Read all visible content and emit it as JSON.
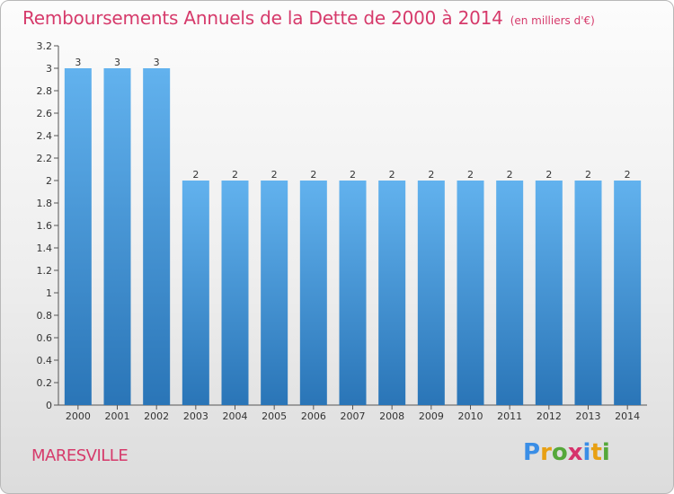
{
  "title": "Remboursements Annuels de la Dette de 2000 à 2014",
  "unit_label": "(en milliers d'€)",
  "commune": "MARESVILLE",
  "logo": {
    "letters": [
      "P",
      "r",
      "o",
      "x",
      "i",
      "t",
      "i"
    ],
    "colors": [
      "#3a8ee6",
      "#e8a013",
      "#55a83a",
      "#d6336c",
      "#3a8ee6",
      "#e8a013",
      "#55a83a"
    ]
  },
  "colors": {
    "bar_top": "#62b2ee",
    "bar_bottom": "#2a75b7",
    "title": "#d63a6b"
  },
  "chart_data": {
    "type": "bar",
    "categories": [
      "2000",
      "2001",
      "2002",
      "2003",
      "2004",
      "2005",
      "2006",
      "2007",
      "2008",
      "2009",
      "2010",
      "2011",
      "2012",
      "2013",
      "2014"
    ],
    "values": [
      3,
      3,
      3,
      2,
      2,
      2,
      2,
      2,
      2,
      2,
      2,
      2,
      2,
      2,
      2
    ],
    "data_labels": [
      "3",
      "3",
      "3",
      "2",
      "2",
      "2",
      "2",
      "2",
      "2",
      "2",
      "2",
      "2",
      "2",
      "2",
      "2"
    ],
    "yticks": [
      0,
      0.2,
      0.4,
      0.6,
      0.8,
      1,
      1.2,
      1.4,
      1.6,
      1.8,
      2,
      2.2,
      2.4,
      2.6,
      2.8,
      3,
      3.2
    ],
    "ytick_labels": [
      "0",
      "0.2",
      "0.4",
      "0.6",
      "0.8",
      "1",
      "1.2",
      "1.4",
      "1.6",
      "1.8",
      "2",
      "2.2",
      "2.4",
      "2.6",
      "2.8",
      "3",
      "3.2"
    ],
    "ylim": [
      0,
      3.2
    ],
    "grid": false,
    "legend": "none"
  }
}
